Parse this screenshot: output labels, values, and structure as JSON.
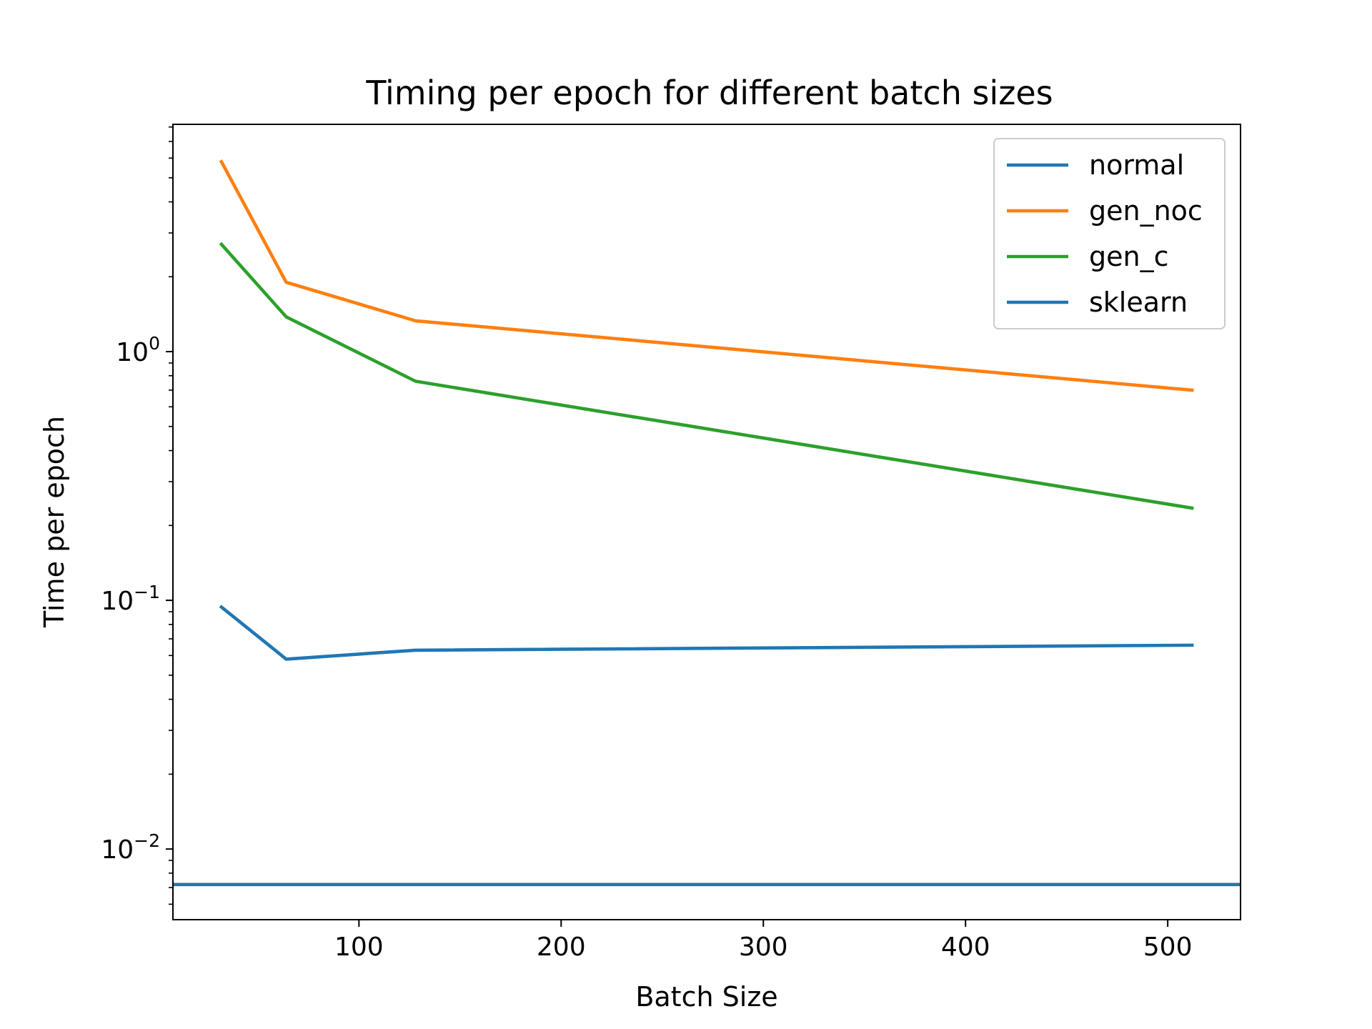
{
  "chart_data": {
    "type": "line",
    "title": "Timing per epoch for different batch sizes",
    "xlabel": "Batch Size",
    "ylabel": "Time per epoch",
    "xscale": "linear",
    "yscale": "log",
    "xlim": [
      8,
      536
    ],
    "ylim": [
      0.0052,
      8.2
    ],
    "x_ticks": [
      100,
      200,
      300,
      400,
      500
    ],
    "y_ticks": [
      {
        "value": 0.01,
        "base": "10",
        "exp": "−2"
      },
      {
        "value": 0.1,
        "base": "10",
        "exp": "−1"
      },
      {
        "value": 1,
        "base": "10",
        "exp": "0"
      }
    ],
    "grid": false,
    "legend": {
      "position": "top-right"
    },
    "series": [
      {
        "name": "normal",
        "color": "#1f77b4",
        "kind": "line",
        "x": [
          32,
          64,
          128,
          512
        ],
        "y": [
          0.094,
          0.058,
          0.063,
          0.066
        ]
      },
      {
        "name": "gen_noc",
        "color": "#ff7f0e",
        "kind": "line",
        "x": [
          32,
          64,
          128,
          512
        ],
        "y": [
          5.8,
          1.9,
          1.33,
          0.7
        ]
      },
      {
        "name": "gen_c",
        "color": "#2ca02c",
        "kind": "line",
        "x": [
          32,
          64,
          128,
          512
        ],
        "y": [
          2.7,
          1.38,
          0.76,
          0.235
        ]
      },
      {
        "name": "sklearn",
        "color": "#1f77b4",
        "kind": "hline",
        "y": 0.0072
      }
    ]
  }
}
